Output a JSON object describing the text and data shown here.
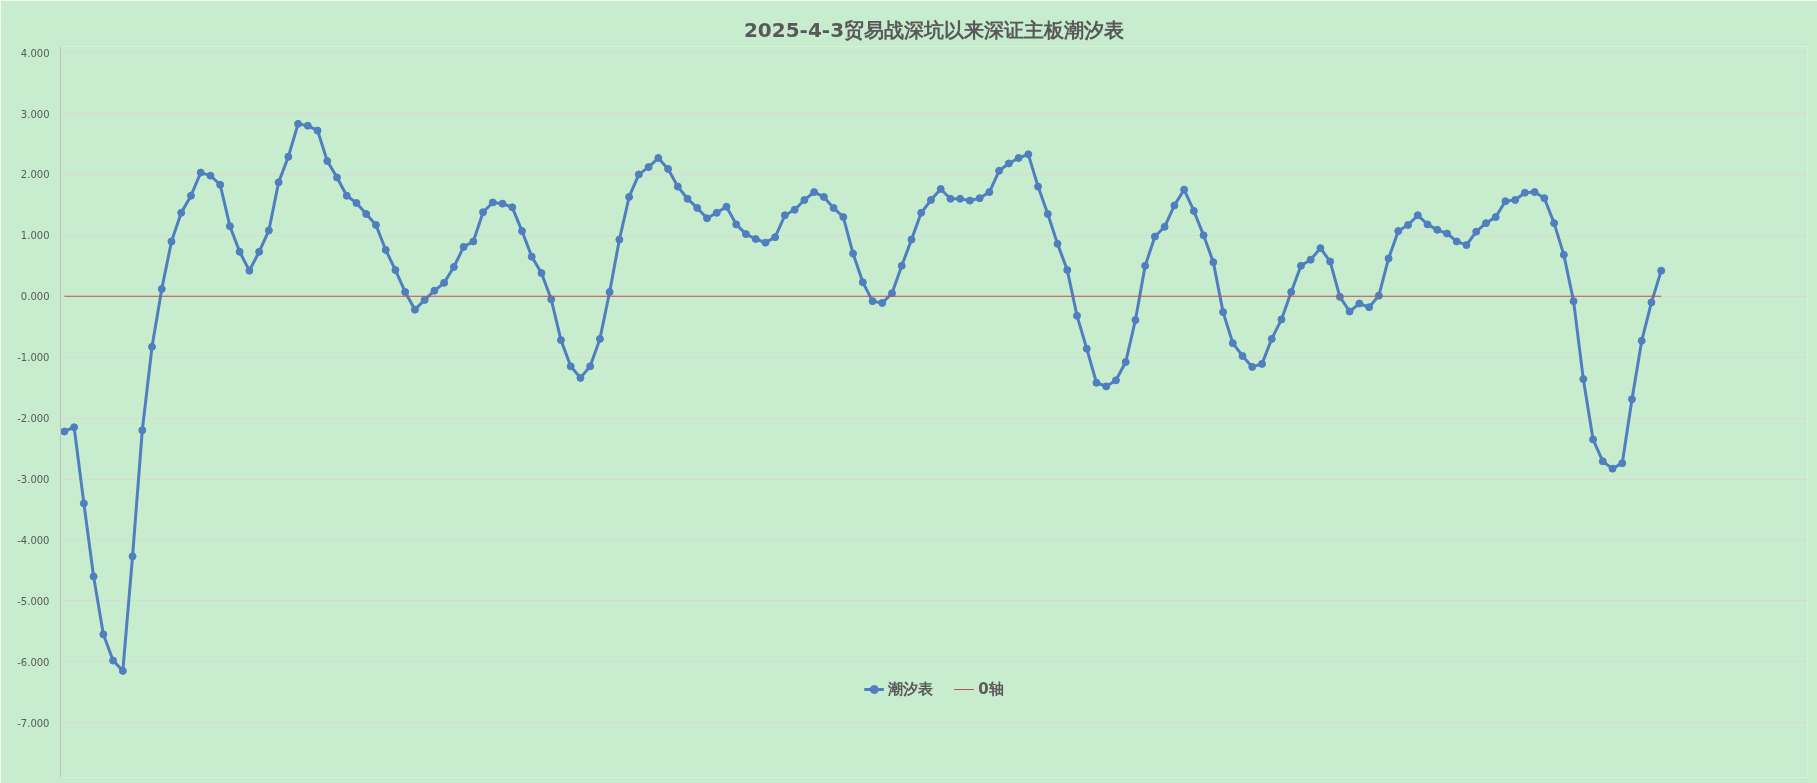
{
  "chart_data": {
    "type": "line",
    "title": "2025-4-3贸易战深坑以来深证主板潮汐表",
    "categories": [
      null,
      null,
      null,
      null,
      null,
      null,
      null,
      null,
      null,
      null,
      null,
      null,
      null,
      null,
      null,
      null,
      null,
      null,
      null,
      null,
      null,
      null,
      null,
      null,
      null,
      null,
      null,
      null,
      null,
      null,
      null,
      null,
      null,
      null,
      null,
      null,
      null,
      null,
      null,
      null,
      null,
      null,
      null,
      null,
      null,
      null,
      null,
      null,
      null,
      null,
      null,
      null,
      null,
      null,
      null,
      null,
      null,
      null,
      null,
      null,
      null,
      null,
      null,
      null,
      null,
      null,
      null,
      null,
      null,
      null,
      null,
      null,
      null,
      null,
      null,
      null,
      null,
      null,
      null,
      null,
      null,
      null,
      null,
      null,
      null,
      null,
      null,
      null,
      null,
      null,
      null,
      null,
      null,
      null,
      null,
      null,
      null,
      null,
      null,
      null,
      null,
      null,
      null,
      null,
      null,
      null,
      null,
      null,
      null,
      null,
      null,
      null,
      null,
      null,
      null,
      null,
      null,
      null,
      null,
      null,
      null,
      null,
      null,
      null,
      null,
      null,
      null,
      null,
      null,
      null,
      null,
      null,
      null,
      null,
      null,
      null,
      null,
      null,
      null,
      null,
      null,
      null,
      null,
      null,
      null,
      null,
      null,
      null,
      null,
      null,
      null,
      null,
      null,
      null,
      null,
      null,
      null,
      null,
      null,
      null,
      null,
      null,
      null,
      null,
      null
    ],
    "series": [
      {
        "name": "潮汐表",
        "color": "#4f7fbf",
        "values": [
          -2.22,
          -2.15,
          -3.4,
          -4.6,
          -5.55,
          -5.98,
          -6.15,
          -4.27,
          -2.2,
          -0.83,
          0.12,
          0.9,
          1.37,
          1.65,
          2.03,
          1.98,
          1.83,
          1.15,
          0.73,
          0.42,
          0.73,
          1.08,
          1.87,
          2.29,
          2.83,
          2.8,
          2.72,
          2.22,
          1.95,
          1.65,
          1.53,
          1.35,
          1.17,
          0.76,
          0.43,
          0.07,
          -0.22,
          -0.06,
          0.09,
          0.22,
          0.48,
          0.81,
          0.9,
          1.38,
          1.54,
          1.52,
          1.46,
          1.07,
          0.65,
          0.38,
          -0.05,
          -0.72,
          -1.15,
          -1.34,
          -1.15,
          -0.7,
          0.07,
          0.93,
          1.63,
          2.0,
          2.12,
          2.27,
          2.09,
          1.8,
          1.6,
          1.45,
          1.28,
          1.37,
          1.47,
          1.18,
          1.02,
          0.94,
          0.88,
          0.97,
          1.33,
          1.42,
          1.58,
          1.71,
          1.63,
          1.45,
          1.3,
          0.7,
          0.23,
          -0.08,
          -0.11,
          0.05,
          0.5,
          0.93,
          1.37,
          1.58,
          1.76,
          1.6,
          1.6,
          1.57,
          1.61,
          1.71,
          2.06,
          2.18,
          2.27,
          2.33,
          1.8,
          1.35,
          0.86,
          0.43,
          -0.32,
          -0.86,
          -1.42,
          -1.48,
          -1.38,
          -1.08,
          -0.39,
          0.5,
          0.98,
          1.14,
          1.49,
          1.75,
          1.4,
          1.0,
          0.56,
          -0.26,
          -0.77,
          -0.98,
          -1.16,
          -1.11,
          -0.7,
          -0.38,
          0.07,
          0.5,
          0.6,
          0.79,
          0.57,
          -0.01,
          -0.25,
          -0.12,
          -0.18,
          0.01,
          0.62,
          1.07,
          1.17,
          1.33,
          1.18,
          1.09,
          1.03,
          0.9,
          0.84,
          1.06,
          1.2,
          1.3,
          1.56,
          1.58,
          1.7,
          1.71,
          1.61,
          1.2,
          0.68,
          -0.08,
          -1.36,
          -2.35,
          -2.71,
          -2.83,
          -2.74,
          -1.69,
          -0.73,
          -0.1,
          0.42
        ]
      }
    ],
    "ref_lines": [
      {
        "axis": "y",
        "value": 0,
        "label": "0轴",
        "color": "#c0504d"
      }
    ],
    "ylim": [
      -7.9,
      4.1
    ],
    "yticks": [
      {
        "value": 4,
        "label": "4.000"
      },
      {
        "value": 3,
        "label": "3.000"
      },
      {
        "value": 2,
        "label": "2.000"
      },
      {
        "value": 1,
        "label": "1.000"
      },
      {
        "value": 0,
        "label": "0.000"
      },
      {
        "value": -1,
        "label": "-1.000"
      },
      {
        "value": -2,
        "label": "-2.000"
      },
      {
        "value": -3,
        "label": "-3.000"
      },
      {
        "value": -4,
        "label": "-4.000"
      },
      {
        "value": -5,
        "label": "-5.000"
      },
      {
        "value": -6,
        "label": "-6.000"
      },
      {
        "value": -7,
        "label": "-7.000"
      }
    ],
    "tick_labels": "y",
    "grid": "y",
    "legend": "bottom",
    "marker": "circle",
    "line_style": "solid"
  }
}
